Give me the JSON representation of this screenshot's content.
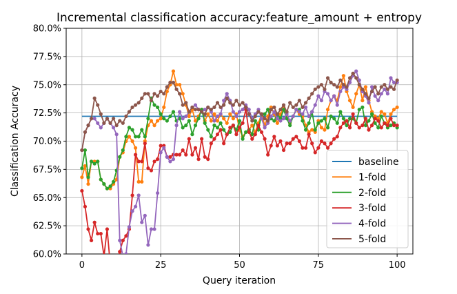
{
  "chart_data": {
    "type": "line",
    "title": "Incremental classification accuracy:feature_amount + entropy",
    "xlabel": "Query iteration",
    "ylabel": "Classification Accuracy",
    "xlim": [
      -5,
      105
    ],
    "ylim": [
      60.0,
      80.0
    ],
    "xticks": [
      0,
      25,
      50,
      75,
      100
    ],
    "yticks": [
      60.0,
      62.5,
      65.0,
      67.5,
      70.0,
      72.5,
      75.0,
      77.5,
      80.0
    ],
    "ytick_labels": [
      "60.0%",
      "62.5%",
      "65.0%",
      "67.5%",
      "70.0%",
      "72.5%",
      "75.0%",
      "77.5%",
      "80.0%"
    ],
    "grid": true,
    "legend_position": "lower-right",
    "x": [
      0,
      1,
      2,
      3,
      4,
      5,
      6,
      7,
      8,
      9,
      10,
      11,
      12,
      13,
      14,
      15,
      16,
      17,
      18,
      19,
      20,
      21,
      22,
      23,
      24,
      25,
      26,
      27,
      28,
      29,
      30,
      31,
      32,
      33,
      34,
      35,
      36,
      37,
      38,
      39,
      40,
      41,
      42,
      43,
      44,
      45,
      46,
      47,
      48,
      49,
      50,
      51,
      52,
      53,
      54,
      55,
      56,
      57,
      58,
      59,
      60,
      61,
      62,
      63,
      64,
      65,
      66,
      67,
      68,
      69,
      70,
      71,
      72,
      73,
      74,
      75,
      76,
      77,
      78,
      79,
      80,
      81,
      82,
      83,
      84,
      85,
      86,
      87,
      88,
      89,
      90,
      91,
      92,
      93,
      94,
      95,
      96,
      97,
      98,
      99,
      100
    ],
    "series": [
      {
        "name": "baseline",
        "color": "#1f77b4",
        "markers": false,
        "values": [
          72.2,
          72.2,
          72.2,
          72.2,
          72.2,
          72.2,
          72.2,
          72.2,
          72.2,
          72.2,
          72.2,
          72.2,
          72.2,
          72.2,
          72.2,
          72.2,
          72.2,
          72.2,
          72.2,
          72.2,
          72.2,
          72.2,
          72.2,
          72.2,
          72.2,
          72.2,
          72.2,
          72.2,
          72.2,
          72.2,
          72.2,
          72.2,
          72.2,
          72.2,
          72.2,
          72.2,
          72.2,
          72.2,
          72.2,
          72.2,
          72.2,
          72.2,
          72.2,
          72.2,
          72.2,
          72.2,
          72.2,
          72.2,
          72.2,
          72.2,
          72.2,
          72.2,
          72.2,
          72.2,
          72.2,
          72.2,
          72.2,
          72.2,
          72.2,
          72.2,
          72.2,
          72.2,
          72.2,
          72.2,
          72.2,
          72.2,
          72.2,
          72.2,
          72.2,
          72.2,
          72.2,
          72.2,
          72.2,
          72.2,
          72.2,
          72.2,
          72.2,
          72.2,
          72.2,
          72.2,
          72.2,
          72.2,
          72.2,
          72.2,
          72.2,
          72.2,
          72.2,
          72.2,
          72.2,
          72.2,
          72.2,
          72.2,
          72.2,
          72.2,
          72.2,
          72.2,
          72.2,
          72.2,
          72.2,
          72.2,
          72.2
        ]
      },
      {
        "name": "1-fold",
        "color": "#ff7f0e",
        "markers": true,
        "values": [
          66.8,
          67.8,
          66.2,
          68.2,
          68.2,
          68.2,
          66.6,
          66.2,
          65.8,
          65.8,
          66.2,
          66.6,
          68.6,
          69.0,
          70.0,
          70.4,
          70.0,
          69.4,
          66.4,
          66.4,
          70.0,
          71.4,
          71.8,
          71.4,
          71.8,
          72.0,
          73.0,
          74.4,
          75.0,
          76.2,
          75.0,
          75.0,
          74.2,
          73.2,
          72.2,
          72.8,
          71.8,
          72.2,
          72.8,
          71.8,
          72.4,
          71.8,
          72.4,
          71.8,
          72.4,
          72.0,
          71.6,
          72.4,
          72.0,
          72.4,
          71.0,
          70.4,
          70.8,
          71.0,
          71.4,
          70.8,
          71.6,
          72.4,
          71.4,
          72.2,
          73.0,
          72.4,
          71.6,
          72.4,
          73.0,
          72.2,
          71.6,
          72.2,
          72.8,
          72.4,
          72.2,
          71.4,
          70.8,
          71.0,
          70.8,
          71.8,
          71.2,
          71.0,
          72.8,
          73.6,
          74.0,
          73.6,
          74.8,
          75.8,
          74.4,
          73.6,
          73.0,
          74.2,
          75.0,
          73.6,
          74.8,
          73.6,
          72.6,
          72.2,
          72.0,
          72.6,
          72.4,
          71.6,
          72.4,
          72.8,
          73.0
        ]
      },
      {
        "name": "2-fold",
        "color": "#2ca02c",
        "markers": true,
        "values": [
          67.6,
          69.2,
          66.8,
          68.2,
          68.0,
          68.2,
          66.6,
          66.2,
          65.8,
          66.0,
          66.4,
          67.4,
          68.6,
          69.2,
          70.4,
          71.2,
          71.0,
          70.4,
          70.4,
          71.0,
          70.4,
          72.0,
          73.8,
          73.2,
          73.0,
          72.4,
          72.0,
          71.8,
          72.2,
          72.6,
          71.8,
          72.0,
          71.2,
          71.4,
          71.8,
          70.6,
          71.4,
          72.0,
          72.8,
          71.6,
          71.0,
          70.4,
          71.4,
          71.2,
          71.6,
          71.0,
          70.6,
          70.8,
          71.4,
          71.0,
          71.8,
          70.2,
          70.8,
          71.0,
          70.6,
          71.8,
          71.0,
          72.4,
          72.4,
          72.8,
          72.0,
          71.8,
          72.4,
          72.0,
          72.8,
          72.0,
          71.4,
          72.2,
          72.8,
          72.8,
          71.8,
          71.0,
          71.6,
          72.6,
          71.0,
          71.6,
          71.8,
          72.0,
          71.2,
          72.2,
          72.0,
          71.6,
          72.6,
          72.0,
          71.4,
          72.0,
          72.0,
          71.6,
          72.8,
          73.0,
          71.4,
          71.8,
          72.4,
          71.6,
          71.2,
          72.2,
          71.6,
          71.2,
          71.4,
          71.6,
          71.2
        ]
      },
      {
        "name": "3-fold",
        "color": "#d62728",
        "markers": true,
        "values": [
          65.6,
          64.2,
          62.2,
          61.2,
          62.8,
          61.8,
          61.8,
          59.8,
          62.2,
          59.0,
          59.2,
          58.6,
          60.2,
          61.2,
          61.6,
          62.2,
          65.2,
          68.8,
          68.2,
          68.2,
          69.8,
          67.6,
          67.4,
          68.2,
          68.4,
          69.6,
          69.6,
          68.6,
          68.6,
          68.8,
          68.8,
          68.8,
          69.2,
          68.8,
          70.2,
          68.8,
          69.4,
          68.4,
          70.2,
          68.6,
          68.4,
          69.8,
          70.2,
          70.6,
          71.0,
          69.8,
          70.6,
          71.2,
          71.4,
          70.6,
          71.2,
          71.6,
          72.8,
          70.8,
          70.2,
          70.6,
          71.4,
          70.8,
          70.2,
          68.8,
          69.6,
          70.4,
          69.6,
          70.0,
          69.2,
          69.8,
          69.8,
          70.2,
          70.4,
          70.0,
          69.4,
          69.4,
          70.6,
          69.8,
          69.0,
          69.4,
          70.0,
          69.8,
          69.4,
          69.8,
          70.2,
          70.4,
          71.2,
          71.6,
          71.8,
          71.2,
          72.4,
          71.6,
          71.2,
          71.4,
          72.0,
          71.0,
          71.4,
          72.0,
          71.8,
          71.2,
          71.6,
          71.4,
          72.0,
          71.4,
          71.4
        ]
      },
      {
        "name": "4-fold",
        "color": "#9467bd",
        "markers": true,
        "values": [
          69.2,
          70.8,
          71.4,
          72.0,
          72.0,
          71.6,
          71.2,
          71.6,
          72.0,
          71.6,
          71.2,
          70.6,
          61.2,
          59.8,
          60.0,
          62.4,
          63.8,
          64.2,
          65.2,
          62.8,
          63.4,
          60.8,
          62.2,
          62.2,
          65.4,
          69.0,
          69.4,
          68.6,
          68.2,
          68.4,
          71.4,
          72.6,
          72.0,
          72.2,
          72.6,
          73.0,
          73.2,
          72.8,
          72.6,
          72.8,
          73.0,
          72.6,
          71.8,
          72.2,
          72.4,
          73.6,
          74.2,
          73.6,
          72.6,
          72.2,
          72.6,
          72.8,
          73.2,
          72.8,
          72.0,
          72.4,
          72.8,
          72.0,
          71.2,
          71.6,
          72.2,
          72.6,
          72.0,
          71.8,
          72.0,
          72.4,
          71.8,
          72.2,
          72.8,
          72.6,
          72.4,
          73.0,
          72.2,
          72.6,
          73.2,
          74.0,
          73.6,
          74.4,
          74.2,
          73.6,
          74.0,
          73.2,
          74.4,
          74.8,
          74.6,
          75.2,
          75.8,
          76.2,
          75.4,
          74.4,
          74.0,
          73.4,
          74.8,
          74.0,
          73.6,
          74.2,
          74.6,
          74.2,
          75.6,
          75.2,
          75.2
        ]
      },
      {
        "name": "5-fold",
        "color": "#8c564b",
        "markers": true,
        "values": [
          69.2,
          70.8,
          71.4,
          72.0,
          73.8,
          73.2,
          72.4,
          71.6,
          72.0,
          71.6,
          72.0,
          71.4,
          71.8,
          71.6,
          72.2,
          72.6,
          73.0,
          73.2,
          73.4,
          73.8,
          74.2,
          74.2,
          73.6,
          74.2,
          74.0,
          74.4,
          74.2,
          74.8,
          75.2,
          75.2,
          74.6,
          74.2,
          73.2,
          73.4,
          72.6,
          73.0,
          72.8,
          72.8,
          72.6,
          72.4,
          73.0,
          72.8,
          73.0,
          73.4,
          73.0,
          73.2,
          73.8,
          73.4,
          73.2,
          73.6,
          73.2,
          73.4,
          73.0,
          72.4,
          71.8,
          72.2,
          72.6,
          72.4,
          72.0,
          71.8,
          72.8,
          73.0,
          72.4,
          72.8,
          73.2,
          72.6,
          73.4,
          73.0,
          73.2,
          73.6,
          73.0,
          73.4,
          73.8,
          74.2,
          74.6,
          74.8,
          75.0,
          74.6,
          75.6,
          75.2,
          75.0,
          74.8,
          75.4,
          75.0,
          74.8,
          75.6,
          76.0,
          75.6,
          75.0,
          74.6,
          74.2,
          73.8,
          74.4,
          74.8,
          74.2,
          74.8,
          75.0,
          74.6,
          74.8,
          74.6,
          75.4
        ]
      }
    ]
  }
}
